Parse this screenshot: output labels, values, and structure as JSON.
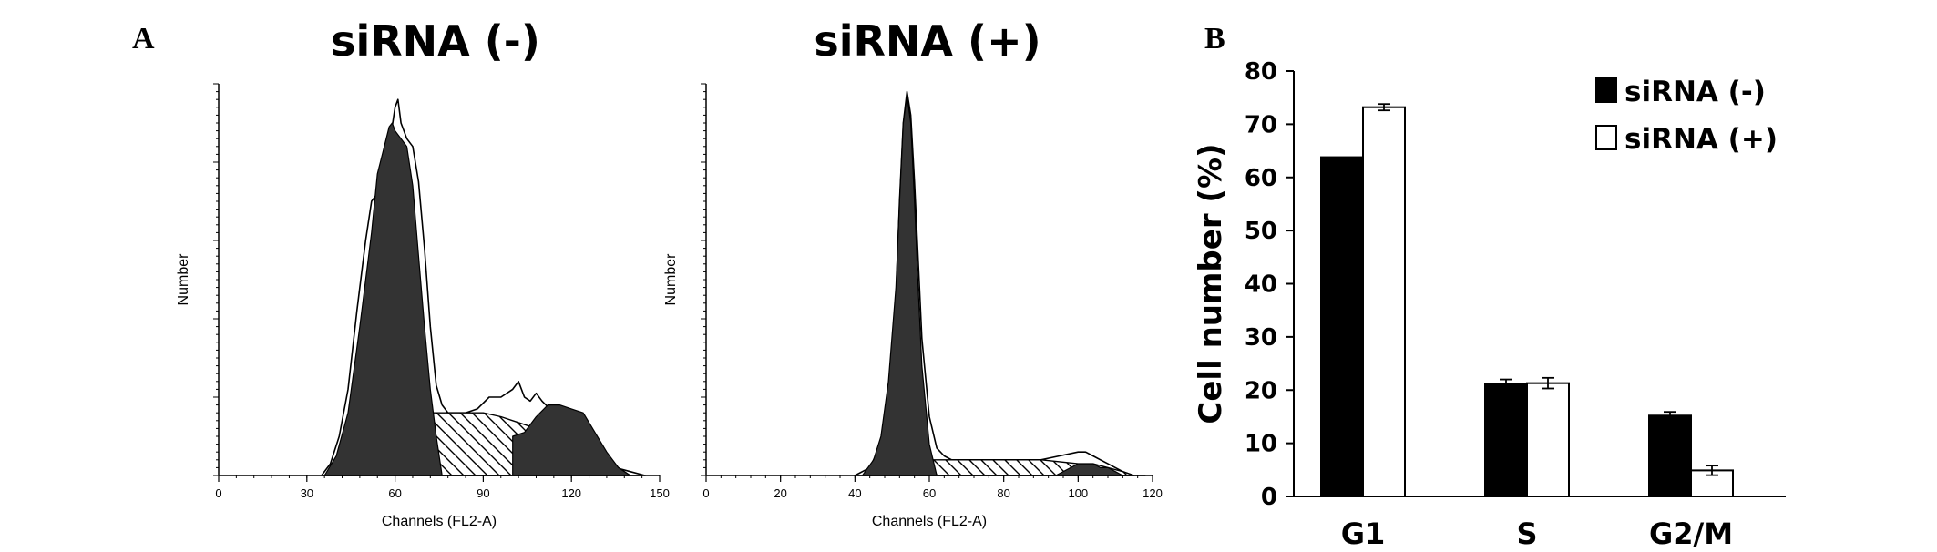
{
  "panel_a_label": "A",
  "panel_b_label": "B",
  "chart_data": [
    {
      "type": "area",
      "title": "siRNA (-)",
      "xlabel": "Channels (FL2-A)",
      "ylabel": "Number",
      "xlim": [
        0,
        150
      ],
      "xticks": [
        "0",
        "30",
        "60",
        "90",
        "120",
        "150"
      ],
      "grid": false,
      "series": [
        {
          "name": "",
          "role": "outline",
          "x": [
            35,
            38,
            41,
            44,
            47,
            50,
            52,
            54,
            56,
            58,
            60,
            61,
            62,
            64,
            66,
            68,
            70,
            72,
            74,
            76,
            78,
            80,
            84,
            88,
            92,
            96,
            100,
            102,
            104,
            106,
            108,
            110,
            114,
            118,
            122,
            126,
            130,
            135,
            140,
            145
          ],
          "y": [
            0,
            3,
            10,
            22,
            42,
            60,
            70,
            72,
            76,
            84,
            94,
            96,
            90,
            86,
            84,
            75,
            58,
            38,
            23,
            18,
            16,
            16,
            16,
            17,
            20,
            20,
            22,
            24,
            20,
            19,
            21,
            19,
            16,
            13,
            11,
            7,
            4,
            2,
            1,
            0
          ]
        },
        {
          "name": "",
          "role": "G1 peak",
          "x": [
            36,
            40,
            44,
            48,
            52,
            54,
            56,
            58,
            59,
            60,
            62,
            64,
            66,
            68,
            70,
            72,
            74,
            76
          ],
          "y": [
            0,
            5,
            16,
            38,
            62,
            77,
            83,
            89,
            90,
            88,
            86,
            84,
            74,
            56,
            38,
            22,
            10,
            0
          ]
        },
        {
          "name": "",
          "role": "S phase",
          "x": [
            36,
            42,
            48,
            54,
            60,
            66,
            72,
            78,
            84,
            90,
            96,
            100,
            104,
            108,
            112,
            116,
            120,
            124,
            128,
            132,
            136,
            140
          ],
          "y": [
            0,
            5,
            9,
            12,
            14,
            15,
            16,
            16,
            16,
            16,
            15,
            14,
            13,
            12,
            11,
            10,
            9,
            8,
            6,
            4,
            2,
            0
          ]
        },
        {
          "name": "",
          "role": "G2/M peak",
          "x": [
            100,
            104,
            108,
            112,
            116,
            120,
            124,
            128,
            132,
            136,
            140
          ],
          "y": [
            10,
            11,
            15,
            18,
            18,
            17,
            16,
            11,
            6,
            2,
            0
          ]
        }
      ]
    },
    {
      "type": "area",
      "title": "siRNA (+)",
      "xlabel": "Channels (FL2-A)",
      "ylabel": "Number",
      "xlim": [
        0,
        120
      ],
      "xticks": [
        "0",
        "20",
        "40",
        "60",
        "80",
        "100",
        "120"
      ],
      "grid": false,
      "series": [
        {
          "name": "",
          "role": "outline",
          "x": [
            40,
            44,
            47,
            49,
            51,
            52,
            53,
            54,
            55,
            56,
            57,
            58,
            60,
            62,
            64,
            66,
            70,
            80,
            90,
            95,
            100,
            102,
            104,
            106,
            108,
            110,
            112,
            115,
            118
          ],
          "y": [
            0,
            2,
            8,
            20,
            45,
            70,
            90,
            98,
            92,
            75,
            55,
            35,
            15,
            7,
            5,
            4,
            4,
            4,
            4,
            5,
            6,
            6,
            5,
            4,
            3,
            2,
            1,
            0,
            0
          ]
        },
        {
          "name": "",
          "role": "G1 peak",
          "x": [
            42,
            45,
            47,
            49,
            51,
            52,
            53,
            54,
            55,
            56,
            57,
            58,
            60,
            62
          ],
          "y": [
            0,
            4,
            10,
            24,
            48,
            70,
            90,
            97,
            90,
            70,
            48,
            28,
            8,
            0
          ]
        },
        {
          "name": "",
          "role": "S phase",
          "x": [
            42,
            46,
            50,
            54,
            58,
            62,
            66,
            70,
            80,
            90,
            100,
            104,
            108,
            112,
            115
          ],
          "y": [
            0,
            2,
            3,
            4,
            4,
            4,
            4,
            4,
            4,
            4,
            3,
            3,
            2,
            1,
            0
          ]
        },
        {
          "name": "",
          "role": "G2/M peak",
          "x": [
            94,
            98,
            100,
            102,
            104,
            106,
            108,
            110,
            112
          ],
          "y": [
            0,
            2,
            3,
            3,
            3,
            2,
            2,
            1,
            0
          ]
        }
      ]
    },
    {
      "type": "bar",
      "ylabel": "Cell number (%)",
      "ylim": [
        0,
        80
      ],
      "yticks": [
        "0",
        "10",
        "20",
        "30",
        "40",
        "50",
        "60",
        "70",
        "80"
      ],
      "categories": [
        "G1",
        "S",
        "G2/M"
      ],
      "legend_position": "top-right",
      "grid": false,
      "series": [
        {
          "name": "siRNA (-)",
          "color": "#000000",
          "values": [
            63.8,
            21.2,
            15.2
          ],
          "errors": [
            0,
            0.8,
            0.7
          ]
        },
        {
          "name": "siRNA (+)",
          "color": "#ffffff",
          "values": [
            73.2,
            21.3,
            4.9
          ],
          "errors": [
            0.6,
            1.0,
            0.9
          ]
        }
      ]
    }
  ]
}
